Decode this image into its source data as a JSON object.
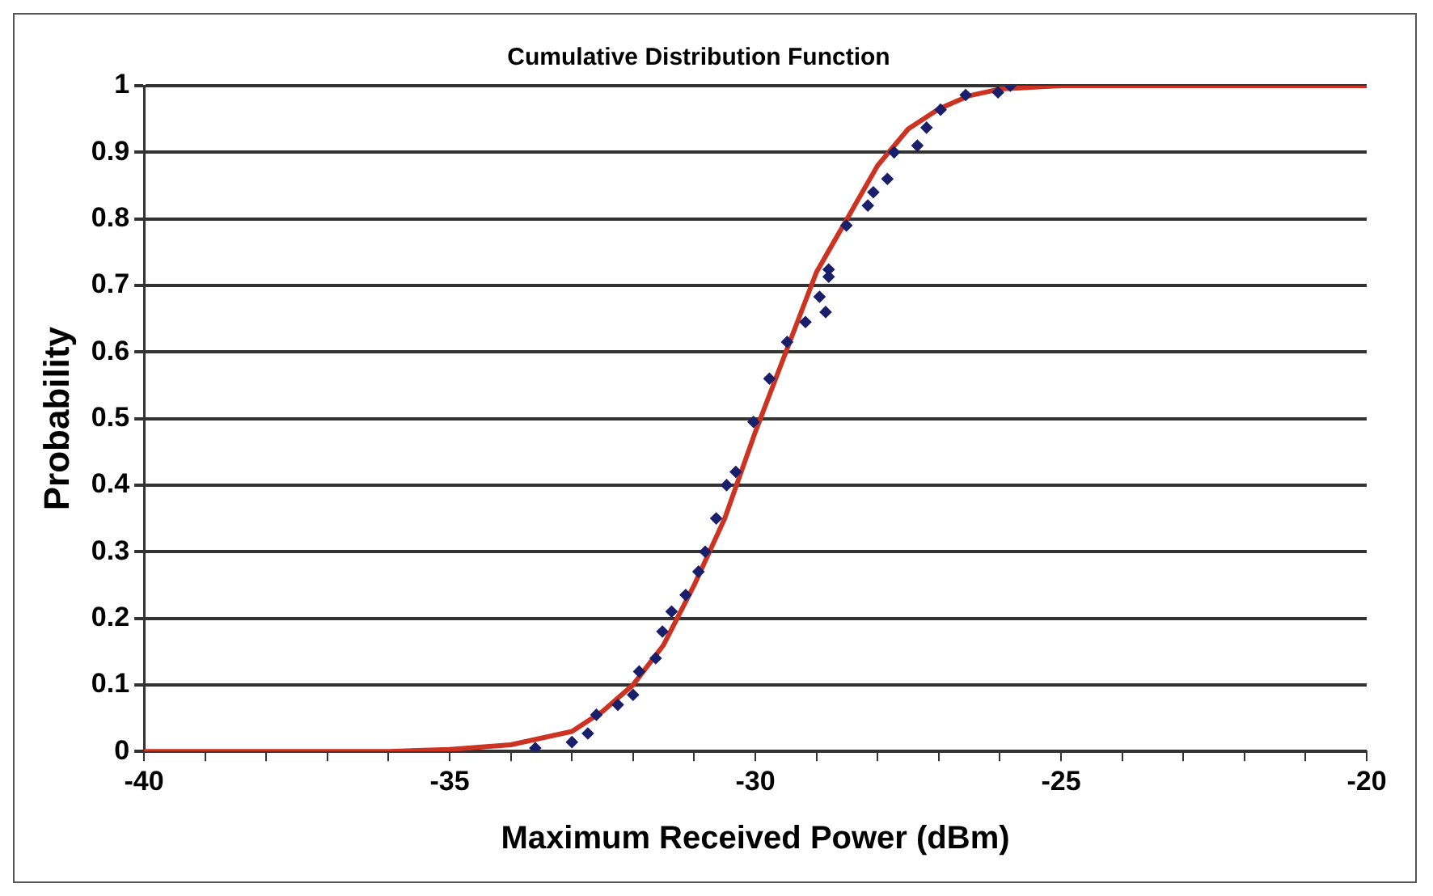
{
  "chart_data": {
    "type": "scatter",
    "title": "Cumulative Distribution Function",
    "xlabel": "Maximum Received Power (dBm)",
    "ylabel": "Probability",
    "xlim": [
      -40,
      -20
    ],
    "xticks": [
      -40,
      {
        "value": -39,
        "label": null
      },
      {
        "value": -38,
        "label": null
      },
      {
        "value": -37,
        "label": null
      },
      {
        "value": -36,
        "label": null
      },
      -35,
      {
        "value": -34,
        "label": null
      },
      {
        "value": -33,
        "label": null
      },
      {
        "value": -32,
        "label": null
      },
      {
        "value": -31,
        "label": null
      },
      -30,
      {
        "value": -29,
        "label": null
      },
      {
        "value": -28,
        "label": null
      },
      {
        "value": -27,
        "label": null
      },
      {
        "value": -26,
        "label": null
      },
      -25,
      {
        "value": -24,
        "label": null
      },
      {
        "value": -23,
        "label": null
      },
      {
        "value": -22,
        "label": null
      },
      {
        "value": -21,
        "label": null
      },
      -20
    ],
    "ylim": [
      0,
      1
    ],
    "yticks": [
      0,
      0.1,
      0.2,
      0.3,
      0.4,
      0.5,
      0.6,
      0.7,
      0.8,
      0.9,
      1
    ],
    "grid": "y",
    "legend": false,
    "series": [
      {
        "type": "line",
        "color": "#cc3322",
        "marker": "none",
        "line_style": "solid",
        "x": [
          -40,
          -36,
          -35,
          -34,
          -33,
          -32.5,
          -32,
          -31.5,
          -31,
          -30.5,
          -30,
          -29.5,
          -29,
          -28.5,
          -28,
          -27.5,
          -27,
          -26.5,
          -26,
          -25,
          -20
        ],
        "values": [
          0,
          0,
          0.003,
          0.01,
          0.03,
          0.06,
          0.1,
          0.16,
          0.25,
          0.35,
          0.48,
          0.6,
          0.72,
          0.8,
          0.88,
          0.935,
          0.965,
          0.985,
          0.995,
          1,
          1
        ]
      },
      {
        "color": "#1a1f6b",
        "marker": "diamond",
        "x": [
          -33.6,
          -33.0,
          -32.74,
          -32.6,
          -32.25,
          -32.0,
          -31.9,
          -31.63,
          -31.52,
          -31.37,
          -31.14,
          -30.93,
          -30.82,
          -30.64,
          -30.47,
          -30.32,
          -30.03,
          -29.77,
          -29.48,
          -29.18,
          -28.95,
          -28.85,
          -28.8,
          -28.8,
          -28.51,
          -28.16,
          -28.07,
          -27.84,
          -27.73,
          -27.35,
          -27.2,
          -26.97,
          -26.56,
          -26.03,
          -25.83
        ],
        "values": [
          0.005,
          0.014,
          0.027,
          0.055,
          0.07,
          0.085,
          0.12,
          0.14,
          0.18,
          0.21,
          0.235,
          0.27,
          0.3,
          0.35,
          0.4,
          0.42,
          0.495,
          0.56,
          0.615,
          0.645,
          0.683,
          0.66,
          0.713,
          0.724,
          0.79,
          0.82,
          0.84,
          0.86,
          0.9,
          0.91,
          0.937,
          0.964,
          0.986,
          0.99,
          1.0
        ]
      }
    ]
  }
}
